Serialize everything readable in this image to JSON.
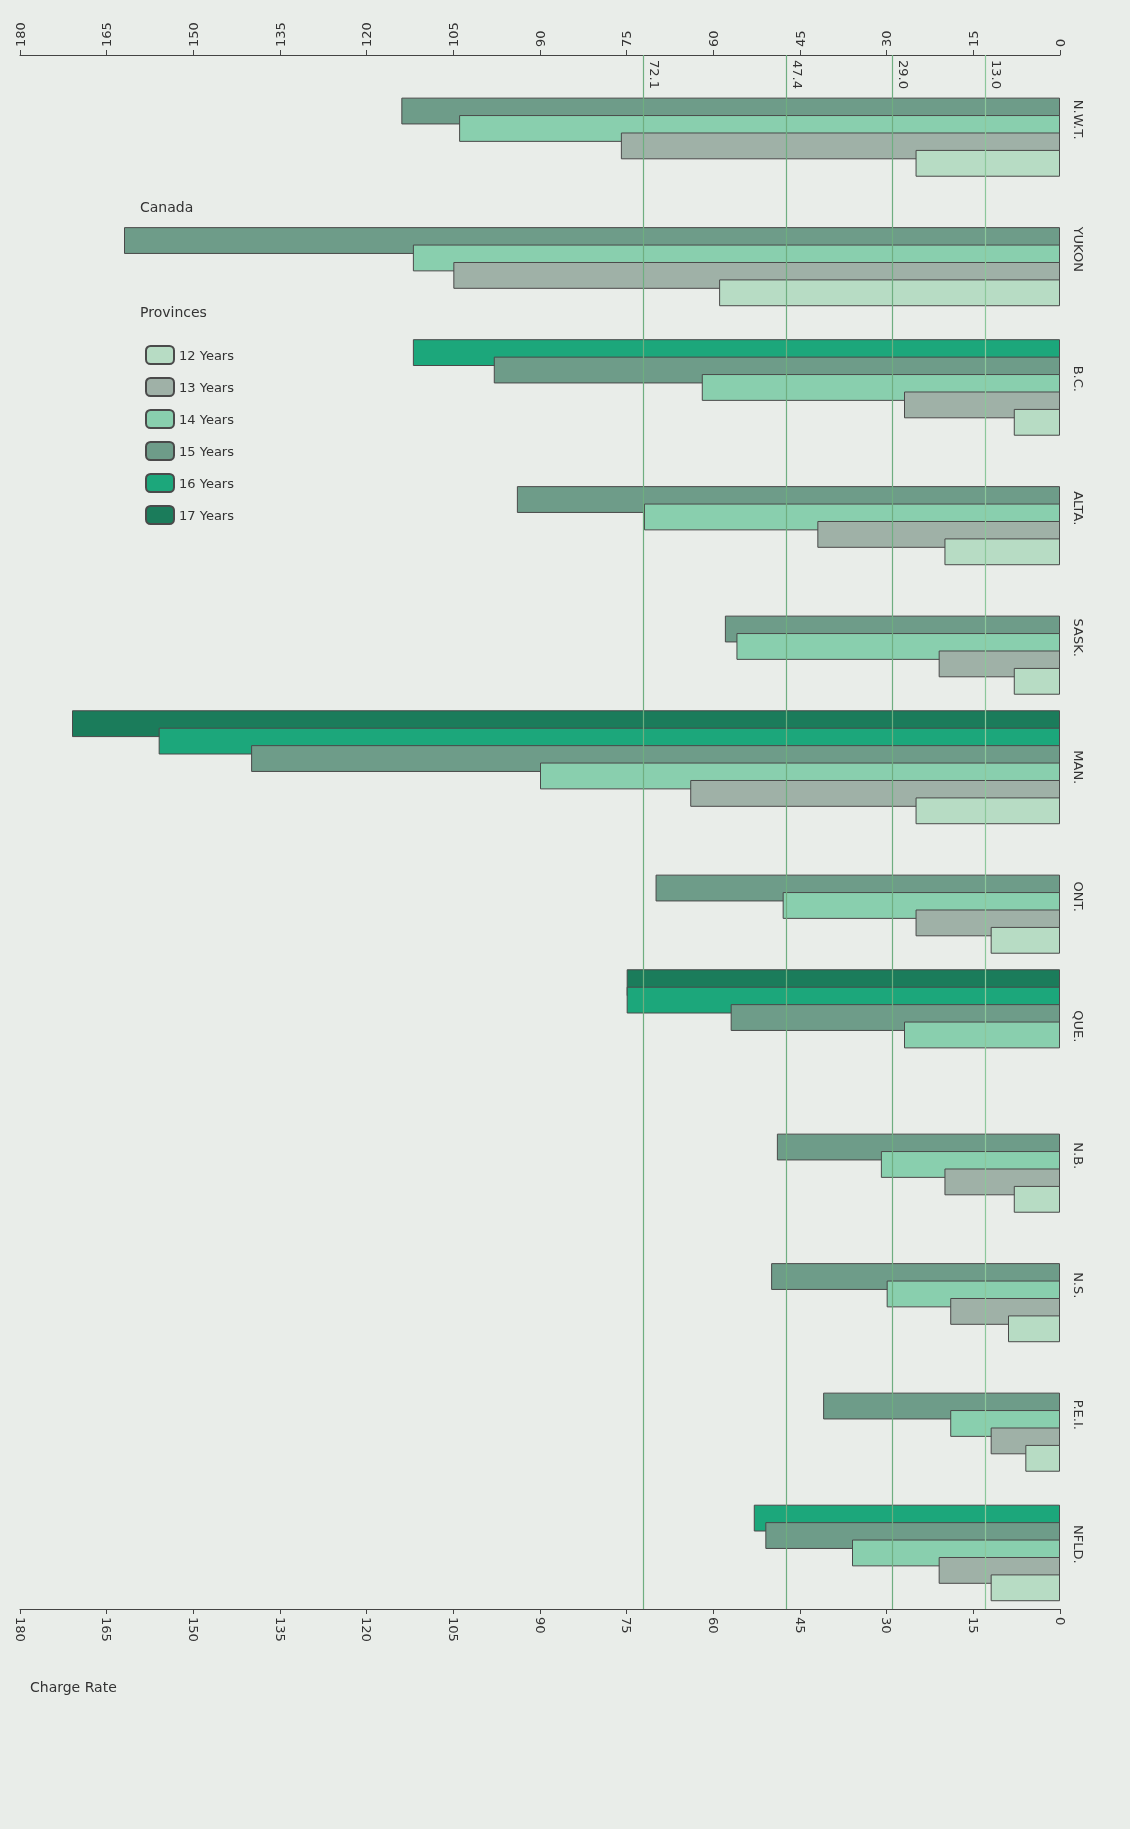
{
  "chart_data": {
    "type": "bar",
    "orientation": "horizontal",
    "categories": [
      "N.W.T.",
      "YUKON",
      "B.C.",
      "ALTA.",
      "SASK.",
      "MAN.",
      "ONT.",
      "QUE.",
      "N.B.",
      "N.S.",
      "P.E.I.",
      "NFLD."
    ],
    "series": [
      {
        "name": "12 Years",
        "color": "#b7dcc4",
        "values": [
          25,
          59,
          8,
          20,
          8,
          25,
          12,
          null,
          8,
          9,
          6,
          12
        ]
      },
      {
        "name": "13 Years",
        "color": "#9fb1a7",
        "values": [
          76,
          105,
          27,
          42,
          21,
          64,
          25,
          null,
          20,
          19,
          12,
          21
        ]
      },
      {
        "name": "14 Years",
        "color": "#89cfae",
        "values": [
          104,
          112,
          62,
          72,
          56,
          90,
          48,
          27,
          31,
          30,
          19,
          36
        ]
      },
      {
        "name": "15 Years",
        "color": "#6e9c89",
        "values": [
          114,
          162,
          98,
          94,
          58,
          140,
          70,
          57,
          49,
          50,
          41,
          51
        ]
      },
      {
        "name": "16 Years",
        "color": "#1ca77b",
        "values": [
          null,
          null,
          112,
          null,
          null,
          156,
          null,
          75,
          null,
          null,
          null,
          53
        ]
      },
      {
        "name": "17 Years",
        "color": "#1b7c5b",
        "values": [
          null,
          null,
          null,
          null,
          null,
          171,
          null,
          75,
          null,
          null,
          null,
          null
        ]
      }
    ],
    "xlabel": "Charge Rate",
    "legend_title": "Provinces",
    "annotations": [
      "Canada"
    ],
    "xlim": [
      180,
      0
    ],
    "xticks": [
      0,
      15,
      30,
      45,
      60,
      75,
      90,
      105,
      120,
      135,
      150,
      165,
      180
    ],
    "x2lim": [
      180,
      0
    ],
    "x2ticks": [
      0,
      15,
      30,
      45,
      60,
      75,
      90,
      105,
      120,
      135,
      150,
      165,
      180
    ],
    "ref_lines": [
      {
        "axis": "x",
        "value": 72.1,
        "label": "72.1",
        "color": "#6fae80"
      },
      {
        "axis": "x",
        "value": 47.4,
        "label": "47.4",
        "color": "#6fae80"
      },
      {
        "axis": "x",
        "value": 29.0,
        "label": "29.0",
        "color": "#6fae80"
      },
      {
        "axis": "x",
        "value": 13.0,
        "label": "13.0",
        "color": "#8cc79a"
      }
    ],
    "grid": false,
    "legend": "left"
  }
}
